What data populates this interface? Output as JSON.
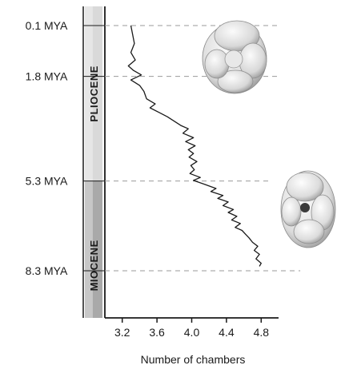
{
  "chart_data": {
    "type": "line",
    "xlabel": "Number of chambers",
    "ylabel": "",
    "xlim": [
      3.0,
      5.0
    ],
    "ylim_mya": [
      0.1,
      8.3
    ],
    "x_ticks": [
      {
        "value": 3.2,
        "label": "3.2"
      },
      {
        "value": 3.6,
        "label": "3.6"
      },
      {
        "value": 4.0,
        "label": "4.0"
      },
      {
        "value": 4.4,
        "label": "4.4"
      },
      {
        "value": 4.8,
        "label": "4.8"
      }
    ],
    "time_markers": [
      {
        "mya": 0.1,
        "label": "0.1 MYA",
        "line_to_x": 5.0
      },
      {
        "mya": 1.8,
        "label": "1.8 MYA",
        "line_to_x": 5.0
      },
      {
        "mya": 5.3,
        "label": "5.3 MYA",
        "line_to_x": 4.9
      },
      {
        "mya": 8.3,
        "label": "8.3 MYA",
        "line_to_x": 5.25
      }
    ],
    "epochs": [
      {
        "name": "PLIOCENE",
        "from_mya": 0.1,
        "to_mya": 5.3,
        "color": "#d9d9d9"
      },
      {
        "name": "MIOCENE",
        "from_mya": 5.3,
        "to_mya": 8.3,
        "color": "#a9a9a9"
      }
    ],
    "series": [
      {
        "color": "#1a1a1a",
        "points": [
          [
            3.3,
            0.1
          ],
          [
            3.32,
            0.4
          ],
          [
            3.34,
            0.7
          ],
          [
            3.3,
            1.0
          ],
          [
            3.35,
            1.25
          ],
          [
            3.27,
            1.45
          ],
          [
            3.33,
            1.6
          ],
          [
            3.42,
            1.75
          ],
          [
            3.3,
            1.92
          ],
          [
            3.4,
            2.1
          ],
          [
            3.45,
            2.3
          ],
          [
            3.48,
            2.55
          ],
          [
            3.58,
            2.72
          ],
          [
            3.52,
            2.85
          ],
          [
            3.62,
            3.0
          ],
          [
            3.72,
            3.15
          ],
          [
            3.8,
            3.3
          ],
          [
            3.88,
            3.45
          ],
          [
            3.96,
            3.55
          ],
          [
            3.9,
            3.7
          ],
          [
            4.02,
            3.85
          ],
          [
            3.93,
            3.98
          ],
          [
            4.04,
            4.12
          ],
          [
            3.96,
            4.25
          ],
          [
            4.02,
            4.38
          ],
          [
            3.97,
            4.5
          ],
          [
            4.06,
            4.65
          ],
          [
            3.99,
            4.78
          ],
          [
            4.03,
            4.92
          ],
          [
            3.98,
            5.05
          ],
          [
            4.1,
            5.18
          ],
          [
            4.02,
            5.28
          ],
          [
            4.16,
            5.42
          ],
          [
            4.28,
            5.55
          ],
          [
            4.22,
            5.65
          ],
          [
            4.36,
            5.78
          ],
          [
            4.3,
            5.88
          ],
          [
            4.42,
            6.0
          ],
          [
            4.36,
            6.12
          ],
          [
            4.48,
            6.25
          ],
          [
            4.42,
            6.35
          ],
          [
            4.52,
            6.48
          ],
          [
            4.46,
            6.6
          ],
          [
            4.56,
            6.72
          ],
          [
            4.5,
            6.85
          ],
          [
            4.58,
            6.95
          ],
          [
            4.62,
            7.08
          ],
          [
            4.66,
            7.2
          ],
          [
            4.7,
            7.35
          ],
          [
            4.76,
            7.48
          ],
          [
            4.72,
            7.62
          ],
          [
            4.78,
            7.75
          ],
          [
            4.74,
            7.9
          ],
          [
            4.8,
            8.05
          ],
          [
            4.78,
            8.15
          ]
        ]
      }
    ],
    "grid": false,
    "dashed_reference_lines": true
  },
  "illustrations": [
    {
      "name": "foraminifera-shell-upper",
      "depicts": "foraminifera shell with few chambers"
    },
    {
      "name": "foraminifera-shell-lower",
      "depicts": "foraminifera shell with more chambers"
    }
  ]
}
